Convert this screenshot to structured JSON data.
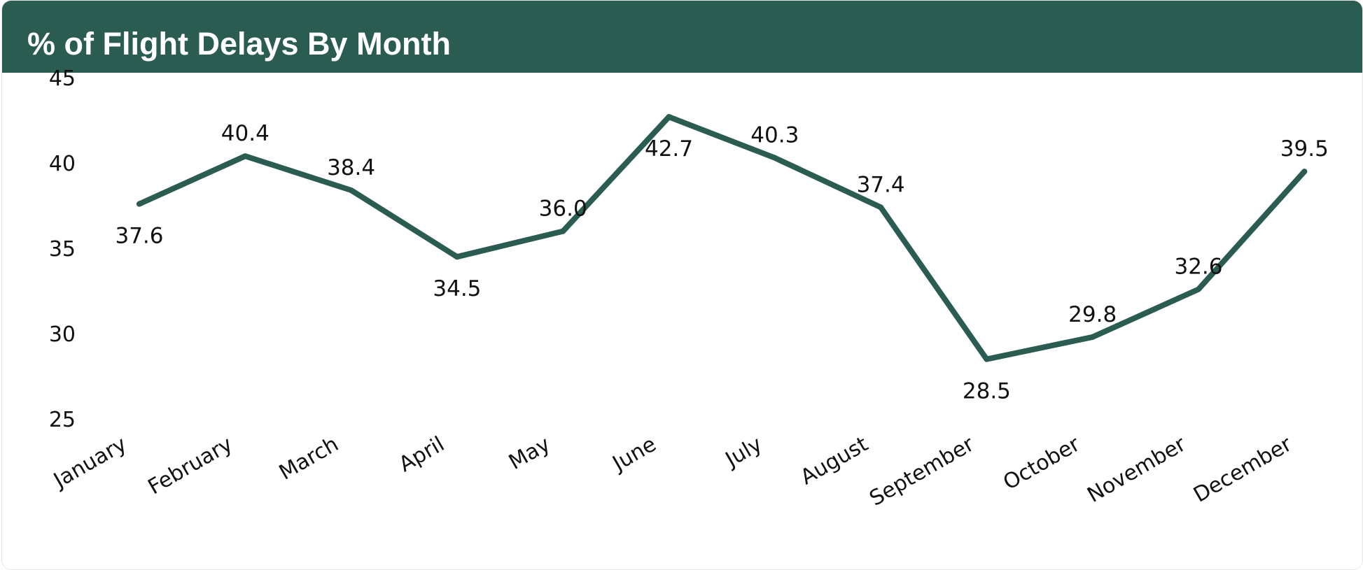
{
  "header": {
    "title": "% of Flight Delays By Month",
    "background_color": "#2b5c51"
  },
  "chart_data": {
    "type": "line",
    "title": "% of Flight Delays By Month",
    "xlabel": "",
    "ylabel": "",
    "categories": [
      "January",
      "February",
      "March",
      "April",
      "May",
      "June",
      "July",
      "August",
      "September",
      "October",
      "November",
      "December"
    ],
    "series": [
      {
        "values": [
          37.6,
          40.4,
          38.4,
          34.5,
          36.0,
          42.7,
          40.3,
          37.4,
          28.5,
          29.8,
          32.6,
          39.5
        ],
        "color": "#2b5c51"
      }
    ],
    "data_labels": [
      "37.6",
      "40.4",
      "38.4",
      "34.5",
      "36.0",
      "42.7",
      "40.3",
      "37.4",
      "28.5",
      "29.8",
      "32.6",
      "39.5"
    ],
    "label_positions": [
      "below",
      "above",
      "above",
      "below",
      "above",
      "below",
      "above",
      "above",
      "below",
      "above",
      "above",
      "above"
    ],
    "ylim": [
      25,
      45
    ],
    "yticks": [
      25,
      30,
      35,
      40,
      45
    ],
    "ytick_labels": [
      "25",
      "30",
      "35",
      "40",
      "45"
    ],
    "grid": false,
    "legend": "none"
  }
}
